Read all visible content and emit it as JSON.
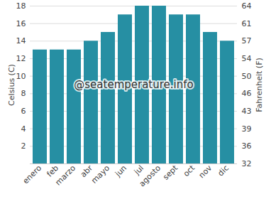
{
  "chart_data": {
    "type": "bar",
    "categories": [
      "enero",
      "feb",
      "marzo",
      "abr",
      "mayo",
      "jun",
      "jul",
      "agosto",
      "sept",
      "oct",
      "nov",
      "dic"
    ],
    "values": [
      13,
      13,
      13,
      14,
      15,
      17,
      18,
      18,
      17,
      17,
      15,
      14
    ],
    "color": "#268fa3",
    "y_label": "Celsius (C)",
    "y2_label": "Fahrenheit (F)",
    "ylim": [
      0,
      18
    ],
    "yticks": [
      2,
      4,
      6,
      8,
      10,
      12,
      14,
      16,
      18
    ],
    "y2lim": [
      32,
      64.4
    ],
    "y2ticks": [
      32,
      {
        "value": 35.6,
        "label": "36"
      },
      {
        "value": 39.2,
        "label": "39"
      },
      {
        "value": 42.8,
        "label": "43"
      },
      {
        "value": 46.4,
        "label": "46"
      },
      50,
      {
        "value": 53.6,
        "label": "54"
      },
      {
        "value": 57.2,
        "label": "57"
      },
      {
        "value": 60.8,
        "label": "61"
      },
      {
        "value": 64.4,
        "label": "64"
      }
    ],
    "annotations": [
      "@seatemperature.info"
    ],
    "grid": true
  }
}
